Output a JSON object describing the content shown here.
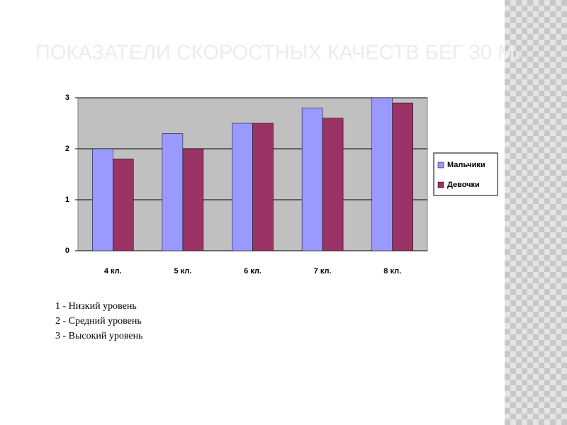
{
  "chart_data": {
    "type": "bar",
    "title": "ПОКАЗАТЕЛИ СКОРОСТНЫХ КАЧЕСТВ БЕГ 30 М.",
    "categories": [
      "4 кл.",
      "5 кл.",
      "6 кл.",
      "7 кл.",
      "8 кл."
    ],
    "series": [
      {
        "name": "Мальчики",
        "color": "#9999ff",
        "values": [
          2,
          2.3,
          2.5,
          2.8,
          3
        ]
      },
      {
        "name": "Девочки",
        "color": "#993366",
        "values": [
          1.8,
          2,
          2.5,
          2.6,
          2.9
        ]
      }
    ],
    "ylim": [
      0,
      3
    ],
    "yticks": [
      0,
      1,
      2,
      3
    ],
    "grid": true,
    "legend": "right",
    "annotations": [
      "1 - Низкий уровень",
      "2 - Средний уровень",
      "3 - Высокий уровень"
    ]
  }
}
